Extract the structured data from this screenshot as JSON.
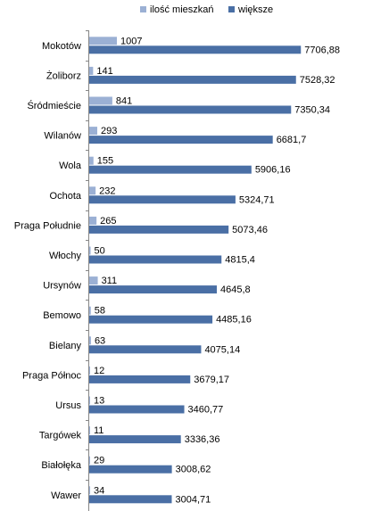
{
  "chart_data": {
    "type": "bar",
    "orientation": "horizontal",
    "title": "",
    "xlabel": "",
    "ylabel": "",
    "legend_position": "top",
    "grid": false,
    "categories": [
      "Mokotów",
      "Żoliborz",
      "Śródmieście",
      "Wilanów",
      "Wola",
      "Ochota",
      "Praga Południe",
      "Włochy",
      "Ursynów",
      "Bemowo",
      "Bielany",
      "Praga Północ",
      "Ursus",
      "Targówek",
      "Białołęka",
      "Wawer"
    ],
    "series": [
      {
        "name": "ilość mieszkań",
        "color": "#9bb0d4",
        "values": [
          1007,
          141,
          841,
          293,
          155,
          232,
          265,
          50,
          311,
          58,
          63,
          12,
          13,
          11,
          29,
          34
        ],
        "labels": [
          "1007",
          "141",
          "841",
          "293",
          "155",
          "232",
          "265",
          "50",
          "311",
          "58",
          "63",
          "12",
          "13",
          "11",
          "29",
          "34"
        ]
      },
      {
        "name": "większe",
        "color": "#4a6fa5",
        "values": [
          7706.88,
          7528.32,
          7350.34,
          6681.7,
          5906.16,
          5324.71,
          5073.46,
          4815.4,
          4645.8,
          4485.16,
          4075.14,
          3679.17,
          3460.77,
          3336.36,
          3008.62,
          3004.71
        ],
        "labels": [
          "7706,88",
          "7528,32",
          "7350,34",
          "6681,7",
          "5906,16",
          "5324,71",
          "5073,46",
          "4815,4",
          "4645,8",
          "4485,16",
          "4075,14",
          "3679,17",
          "3460,77",
          "3336,36",
          "3008,62",
          "3004,71"
        ]
      }
    ],
    "xlim": [
      0,
      10200
    ]
  }
}
